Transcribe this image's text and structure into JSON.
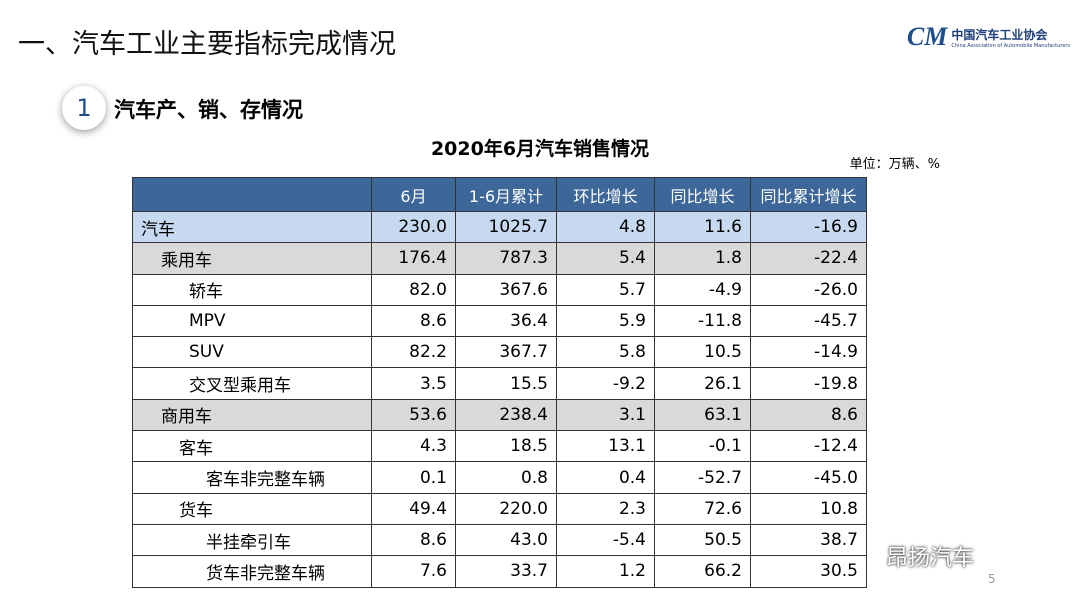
{
  "header": {
    "title": "一、汽车工业主要指标完成情况",
    "logo_cn": "中国汽车工业协会",
    "logo_en": "China Association of Automobile Manufacturers",
    "logo_mark": "CM"
  },
  "section": {
    "number": "1",
    "title": "汽车产、销、存情况"
  },
  "table": {
    "title": "2020年6月汽车销售情况",
    "unit": "单位：万辆、%",
    "columns": [
      "",
      "6月",
      "1-6月累计",
      "环比增长",
      "同比增长",
      "同比累计增长"
    ],
    "rows": [
      [
        "汽车",
        "230.0",
        "1025.7",
        "4.8",
        "11.6",
        "-16.9"
      ],
      [
        "乘用车",
        "176.4",
        "787.3",
        "5.4",
        "1.8",
        "-22.4"
      ],
      [
        "轿车",
        "82.0",
        "367.6",
        "5.7",
        "-4.9",
        "-26.0"
      ],
      [
        "MPV",
        "8.6",
        "36.4",
        "5.9",
        "-11.8",
        "-45.7"
      ],
      [
        "SUV",
        "82.2",
        "367.7",
        "5.8",
        "10.5",
        "-14.9"
      ],
      [
        "交叉型乘用车",
        "3.5",
        "15.5",
        "-9.2",
        "26.1",
        "-19.8"
      ],
      [
        "商用车",
        "53.6",
        "238.4",
        "3.1",
        "63.1",
        "8.6"
      ],
      [
        "客车",
        "4.3",
        "18.5",
        "13.1",
        "-0.1",
        "-12.4"
      ],
      [
        "客车非完整车辆",
        "0.1",
        "0.8",
        "0.4",
        "-52.7",
        "-45.0"
      ],
      [
        "货车",
        "49.4",
        "220.0",
        "2.3",
        "72.6",
        "10.8"
      ],
      [
        "半挂牵引车",
        "8.6",
        "43.0",
        "-5.4",
        "50.5",
        "38.7"
      ],
      [
        "货车非完整车辆",
        "7.6",
        "33.7",
        "1.2",
        "66.2",
        "30.5"
      ]
    ]
  },
  "watermark": "昂扬汽车",
  "page_number": "5"
}
